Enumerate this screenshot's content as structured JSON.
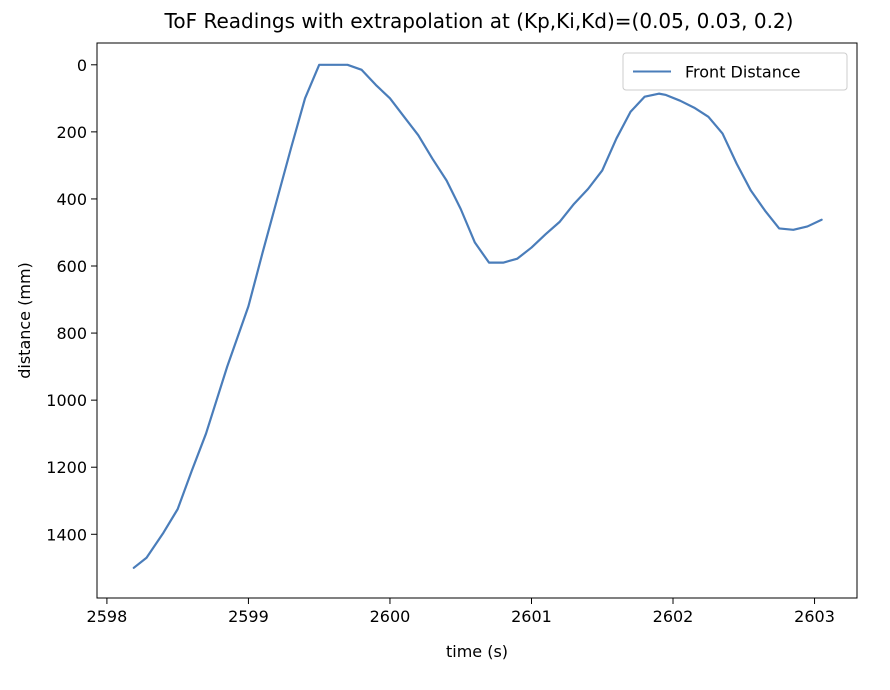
{
  "chart_data": {
    "type": "line",
    "title": "ToF Readings with extrapolation at (Kp,Ki,Kd)=(0.05, 0.03, 0.2)",
    "xlabel": "time (s)",
    "ylabel": "distance (mm)",
    "xlim": [
      2597.93,
      2603.3
    ],
    "ylim": [
      1590,
      -65
    ],
    "y_inverted": true,
    "xticks": [
      2598,
      2599,
      2600,
      2601,
      2602,
      2603
    ],
    "xtick_labels": [
      "2598",
      "2599",
      "2600",
      "2601",
      "2602",
      "2603"
    ],
    "yticks": [
      0,
      200,
      400,
      600,
      800,
      1000,
      1200,
      1400
    ],
    "ytick_labels": [
      "0",
      "200",
      "400",
      "600",
      "800",
      "1000",
      "1200",
      "1400"
    ],
    "grid": false,
    "legend_position": "top-right",
    "series": [
      {
        "name": "Front Distance",
        "color": "#4a7dba",
        "x": [
          2598.19,
          2598.28,
          2598.4,
          2598.5,
          2598.6,
          2598.7,
          2598.85,
          2599.0,
          2599.1,
          2599.2,
          2599.3,
          2599.4,
          2599.5,
          2599.6,
          2599.7,
          2599.8,
          2599.9,
          2600.0,
          2600.1,
          2600.2,
          2600.3,
          2600.4,
          2600.5,
          2600.6,
          2600.7,
          2600.8,
          2600.9,
          2601.0,
          2601.1,
          2601.2,
          2601.3,
          2601.4,
          2601.5,
          2601.6,
          2601.7,
          2601.8,
          2601.9,
          2601.95,
          2602.05,
          2602.15,
          2602.25,
          2602.35,
          2602.45,
          2602.55,
          2602.65,
          2602.75,
          2602.85,
          2602.95,
          2603.05
        ],
        "y": [
          1500,
          1470,
          1395,
          1325,
          1210,
          1100,
          900,
          720,
          560,
          405,
          250,
          100,
          0,
          0,
          0,
          15,
          60,
          100,
          155,
          210,
          280,
          345,
          430,
          530,
          590,
          590,
          578,
          545,
          505,
          468,
          415,
          370,
          315,
          220,
          140,
          95,
          86,
          90,
          107,
          128,
          155,
          205,
          295,
          375,
          435,
          488,
          492,
          482,
          462
        ]
      }
    ]
  }
}
